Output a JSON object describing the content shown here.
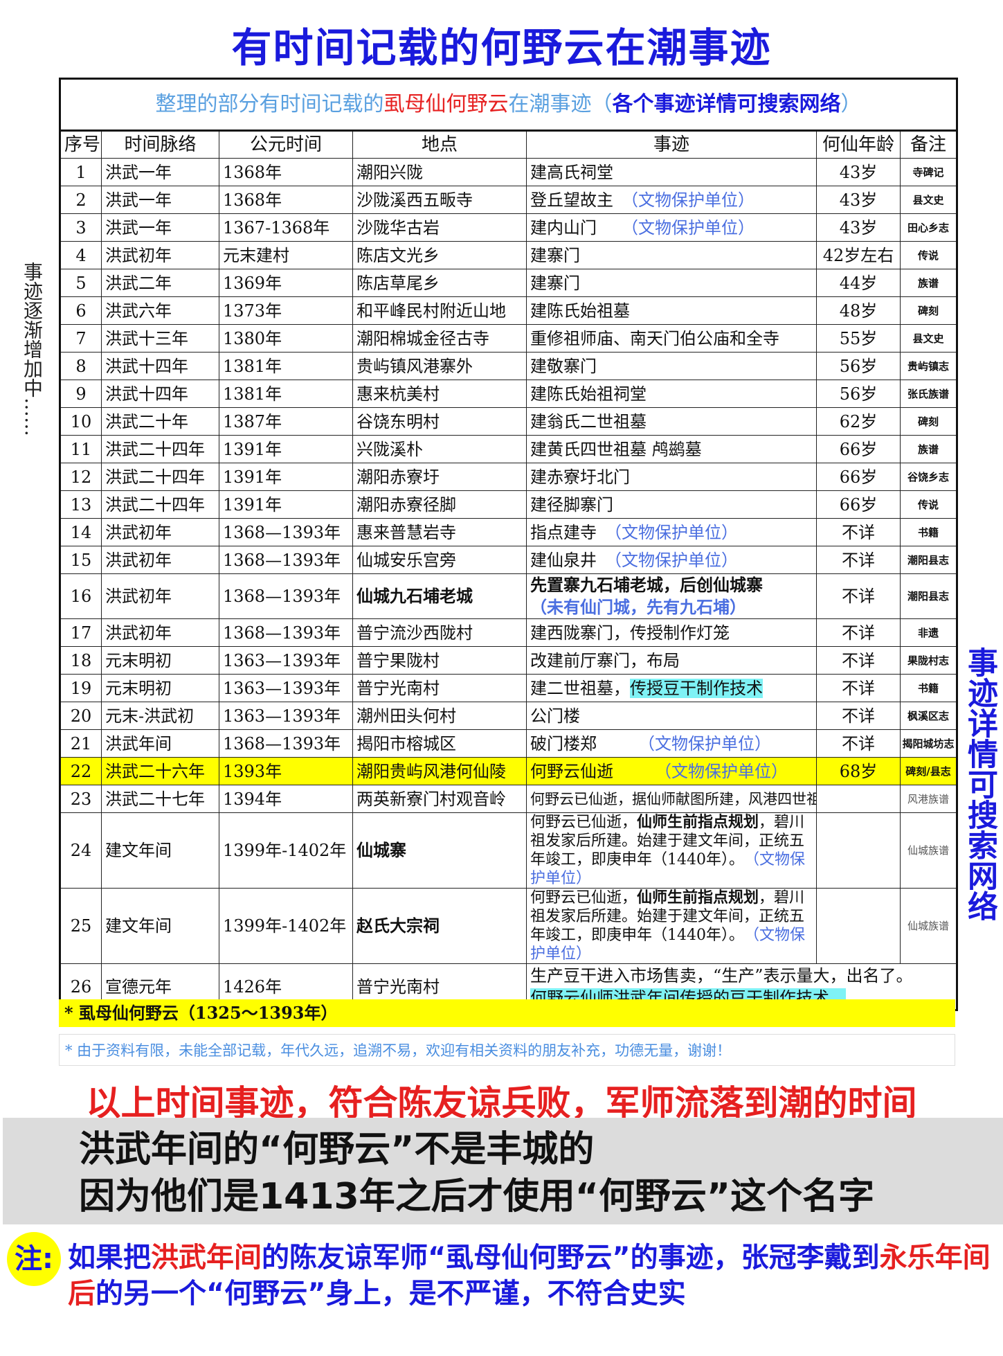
{
  "title": "有时间记载的何野云在潮事迹",
  "side_left": "事迹逐渐增加中……",
  "side_right": "事迹详情可搜索网络",
  "subtitle": {
    "part1": "整理的部分有时间记载的",
    "part2": "虱母仙何野云",
    "part3": "在潮事迹（",
    "part4": "各个事迹详情可搜索网络",
    "part5": "）"
  },
  "headers": [
    "序号",
    "时间脉络",
    "公元时间",
    "地点",
    "事迹",
    "何仙年龄",
    "备注"
  ],
  "rows": [
    {
      "no": "1",
      "era": "洪武一年",
      "year": "1368年",
      "place": "潮阳兴陇",
      "event": [
        {
          "t": "建高氏祠堂"
        }
      ],
      "age": "43岁",
      "note": "寺碑记"
    },
    {
      "no": "2",
      "era": "洪武一年",
      "year": "1368年",
      "place": "沙陇溪西五畈寺",
      "event": [
        {
          "t": "登丘望故主　"
        },
        {
          "t": "（文物保护单位）",
          "s": "prot"
        }
      ],
      "age": "43岁",
      "note": "县文史"
    },
    {
      "no": "3",
      "era": "洪武一年",
      "year": "1367-1368年",
      "place": "沙陇华古岩",
      "event": [
        {
          "t": "建内山门　　"
        },
        {
          "t": "（文物保护单位）",
          "s": "prot"
        }
      ],
      "age": "43岁",
      "note": "田心乡志"
    },
    {
      "no": "4",
      "era": "洪武初年",
      "year": "元末建村",
      "place": "陈店文光乡",
      "event": [
        {
          "t": "建寨门"
        }
      ],
      "age": "42岁左右",
      "note": "传说"
    },
    {
      "no": "5",
      "era": "洪武二年",
      "year": "1369年",
      "place": "陈店草尾乡",
      "event": [
        {
          "t": "建寨门"
        }
      ],
      "age": "44岁",
      "note": "族谱"
    },
    {
      "no": "6",
      "era": "洪武六年",
      "year": "1373年",
      "place": "和平峰民村附近山地",
      "event": [
        {
          "t": "建陈氏始祖墓"
        }
      ],
      "age": "48岁",
      "note": "碑刻"
    },
    {
      "no": "7",
      "era": "洪武十三年",
      "year": "1380年",
      "place": "潮阳棉城金径古寺",
      "event": [
        {
          "t": "重修祖师庙、南天门伯公庙和全寺"
        }
      ],
      "age": "55岁",
      "note": "县文史"
    },
    {
      "no": "8",
      "era": "洪武十四年",
      "year": "1381年",
      "place": "贵屿镇风港寨外",
      "event": [
        {
          "t": "建敬寨门"
        }
      ],
      "age": "56岁",
      "note": "贵屿镇志"
    },
    {
      "no": "9",
      "era": "洪武十四年",
      "year": "1381年",
      "place": "惠来杭美村",
      "event": [
        {
          "t": "建陈氏始祖祠堂"
        }
      ],
      "age": "56岁",
      "note": "张氏族谱"
    },
    {
      "no": "10",
      "era": "洪武二十年",
      "year": "1387年",
      "place": "谷饶东明村",
      "event": [
        {
          "t": "建翁氏二世祖墓"
        }
      ],
      "age": "62岁",
      "note": "碑刻"
    },
    {
      "no": "11",
      "era": "洪武二十四年",
      "year": "1391年",
      "place": "兴陇溪朴",
      "event": [
        {
          "t": "建黄氏四世祖墓 鸬鹚墓"
        }
      ],
      "age": "66岁",
      "note": "族谱"
    },
    {
      "no": "12",
      "era": "洪武二十四年",
      "year": "1391年",
      "place": "潮阳赤寮圩",
      "event": [
        {
          "t": "建赤寮圩北门"
        }
      ],
      "age": "66岁",
      "note": "谷饶乡志"
    },
    {
      "no": "13",
      "era": "洪武二十四年",
      "year": "1391年",
      "place": "潮阳赤寮径脚",
      "event": [
        {
          "t": "建径脚寨门"
        }
      ],
      "age": "66岁",
      "note": "传说"
    },
    {
      "no": "14",
      "era": "洪武初年",
      "year": "1368—1393年",
      "place": "惠来普慧岩寺",
      "event": [
        {
          "t": "指点建寺　"
        },
        {
          "t": "（文物保护单位）",
          "s": "prot"
        }
      ],
      "age": "不详",
      "note": "书籍"
    },
    {
      "no": "15",
      "era": "洪武初年",
      "year": "1368—1393年",
      "place": "仙城安乐宫旁",
      "event": [
        {
          "t": "建仙泉井　"
        },
        {
          "t": "（文物保护单位）",
          "s": "prot"
        }
      ],
      "age": "不详",
      "note": "潮阳县志"
    },
    {
      "no": "16",
      "era": "洪武初年",
      "year": "1368—1393年",
      "place": "仙城九石埔老城",
      "place_bold": true,
      "event": [
        {
          "t": "先置寨九石埔老城，后创仙城寨",
          "s": "bold"
        },
        {
          "t": "（未有仙门城，先有九石埔）",
          "s": "prot bold",
          "br": true
        }
      ],
      "age": "不详",
      "note": "潮阳县志",
      "h": 65
    },
    {
      "no": "17",
      "era": "洪武初年",
      "year": "1368—1393年",
      "place": "普宁流沙西陇村",
      "event": [
        {
          "t": "建西陇寨门，传授制作灯笼"
        }
      ],
      "age": "不详",
      "note": "非遗"
    },
    {
      "no": "18",
      "era": "元末明初",
      "year": "1363—1393年",
      "place": "普宁果陇村",
      "event": [
        {
          "t": "改建前厅寨门，布局"
        }
      ],
      "age": "不详",
      "note": "果陇村志"
    },
    {
      "no": "19",
      "era": "元末明初",
      "year": "1363—1393年",
      "place": "普宁光南村",
      "event": [
        {
          "t": "建二世祖墓，"
        },
        {
          "t": "传授豆干制作技术",
          "s": "cyan"
        }
      ],
      "age": "不详",
      "note": "书籍"
    },
    {
      "no": "20",
      "era": "元末-洪武初",
      "year": "1363—1393年",
      "place": "潮州田头何村",
      "event": [
        {
          "t": "公门楼"
        }
      ],
      "age": "不详",
      "note": "枫溪区志"
    },
    {
      "no": "21",
      "era": "洪武年间",
      "year": "1368—1393年",
      "place": "揭阳市榕城区",
      "event": [
        {
          "t": "破门楼郑　　　"
        },
        {
          "t": "（文物保护单位）",
          "s": "prot"
        }
      ],
      "age": "不详",
      "note": "揭阳城坊志"
    },
    {
      "no": "22",
      "era": "洪武二十六年",
      "year": "1393年",
      "place": "潮阳贵屿风港何仙陵",
      "event": [
        {
          "t": "何野云仙逝　　　"
        },
        {
          "t": "（文物保护单位）",
          "s": "prot"
        }
      ],
      "age": "68岁",
      "note": "碑刻/县志",
      "highlight": true
    },
    {
      "no": "23",
      "era": "洪武二十七年",
      "year": "1394年",
      "place": "两英新寮门村观音岭",
      "event": [
        {
          "t": "何野云已仙逝，据仙师献图所建，风港四世祖墓"
        }
      ],
      "age": "",
      "note": "风港族谱",
      "small": true
    },
    {
      "no": "24",
      "era": "建文年间",
      "year": "1399年-1402年",
      "place": "仙城寨",
      "place_bold": true,
      "event": [
        {
          "t": "何野云已仙逝，"
        },
        {
          "t": "仙师生前指点规划",
          "s": "bold"
        },
        {
          "t": "，碧川祖发家后所建。始建于建文年间，正统五年竣工，即庚申年（1440年）。　"
        },
        {
          "t": "（文物保护单位）",
          "s": "prot"
        }
      ],
      "age": "",
      "note": "仙城族谱",
      "h": 97,
      "wrap": true
    },
    {
      "no": "25",
      "era": "建文年间",
      "year": "1399年-1402年",
      "place": "赵氏大宗祠",
      "place_bold": true,
      "event": [
        {
          "t": "何野云已仙逝，"
        },
        {
          "t": "仙师生前指点规划",
          "s": "bold"
        },
        {
          "t": "，碧川祖发家后所建。始建于建文年间，正统五年竣工，即庚申年（1440年）。　"
        },
        {
          "t": "（文物保护单位）",
          "s": "prot"
        }
      ],
      "age": "",
      "note": "仙城族谱",
      "h": 97,
      "wrap": true
    },
    {
      "no": "26",
      "era": "宣德元年",
      "year": "1426年",
      "place": "普宁光南村",
      "event": [
        {
          "t": "生产豆干进入市场售卖，“生产”表示量大，出名了。"
        },
        {
          "t": "何野云仙师洪武年间传授的豆干制作技术。",
          "s": "cyan",
          "br": true
        }
      ],
      "age": "",
      "note": "",
      "h": 67,
      "span": true
    }
  ],
  "footnote1": "* 虱母仙何野云（1325～1393年）",
  "footnote2": "* 由于资料有限，未能全部记载，年代久远，追溯不易，欢迎有相关资料的朋友补充，功德无量，谢谢！",
  "conclusion": "以上时间事迹，符合陈友谅兵败，军师流落到潮的时间",
  "gray_lines": [
    "洪武年间的“何野云”不是丰城的",
    "因为他们是1413年之后才使用“何野云”这个名字"
  ],
  "note_label": "注:",
  "note": {
    "a": "如果把",
    "b": "洪武年间",
    "c": "的陈友谅军师“虱母仙何野云”的事迹，张冠李戴到",
    "d": "永乐年间后",
    "e": "的另一个“何野云”身上，是不严谨，不符合史实"
  },
  "colors": {
    "blue": "#1a1adc",
    "red": "#e62020",
    "yellow": "#ffff00",
    "cyan": "#7ff2f5",
    "protected": "#4a6ee0"
  }
}
